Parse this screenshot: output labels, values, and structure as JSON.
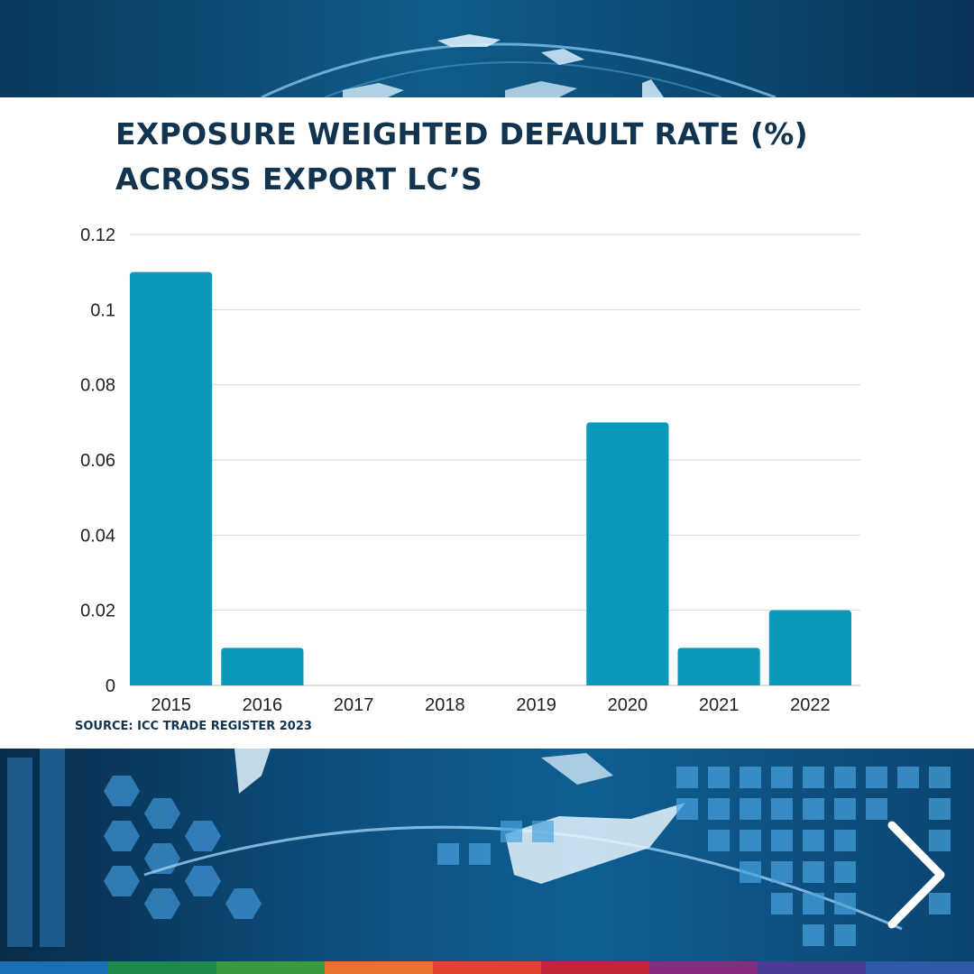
{
  "chart_data": {
    "type": "bar",
    "title_lines": [
      "EXPOSURE WEIGHTED DEFAULT RATE (%)",
      "ACROSS EXPORT LC’S"
    ],
    "categories": [
      "2015",
      "2016",
      "2017",
      "2018",
      "2019",
      "2020",
      "2021",
      "2022"
    ],
    "values": [
      0.11,
      0.01,
      0,
      0,
      0,
      0.07,
      0.01,
      0.02
    ],
    "y_ticks": [
      "0",
      "0.02",
      "0.04",
      "0.06",
      "0.08",
      "0.1",
      "0.12"
    ],
    "ylim": [
      0,
      0.12
    ],
    "xlabel": "",
    "ylabel": "",
    "grid": true,
    "bar_color": "#0a99b8",
    "grid_color": "#d9d9d9"
  },
  "source": "SOURCE: ICC TRADE REGISTER 2023",
  "nav": {
    "next_icon": "chevron-right-icon"
  },
  "colors": {
    "title": "#12344f",
    "stripe": [
      "#1a6fb5",
      "#1e8a4c",
      "#3a9a3e",
      "#e8732a",
      "#e0452b",
      "#c2263a",
      "#8a2a7e",
      "#4a3a96",
      "#2e5aa8"
    ]
  }
}
